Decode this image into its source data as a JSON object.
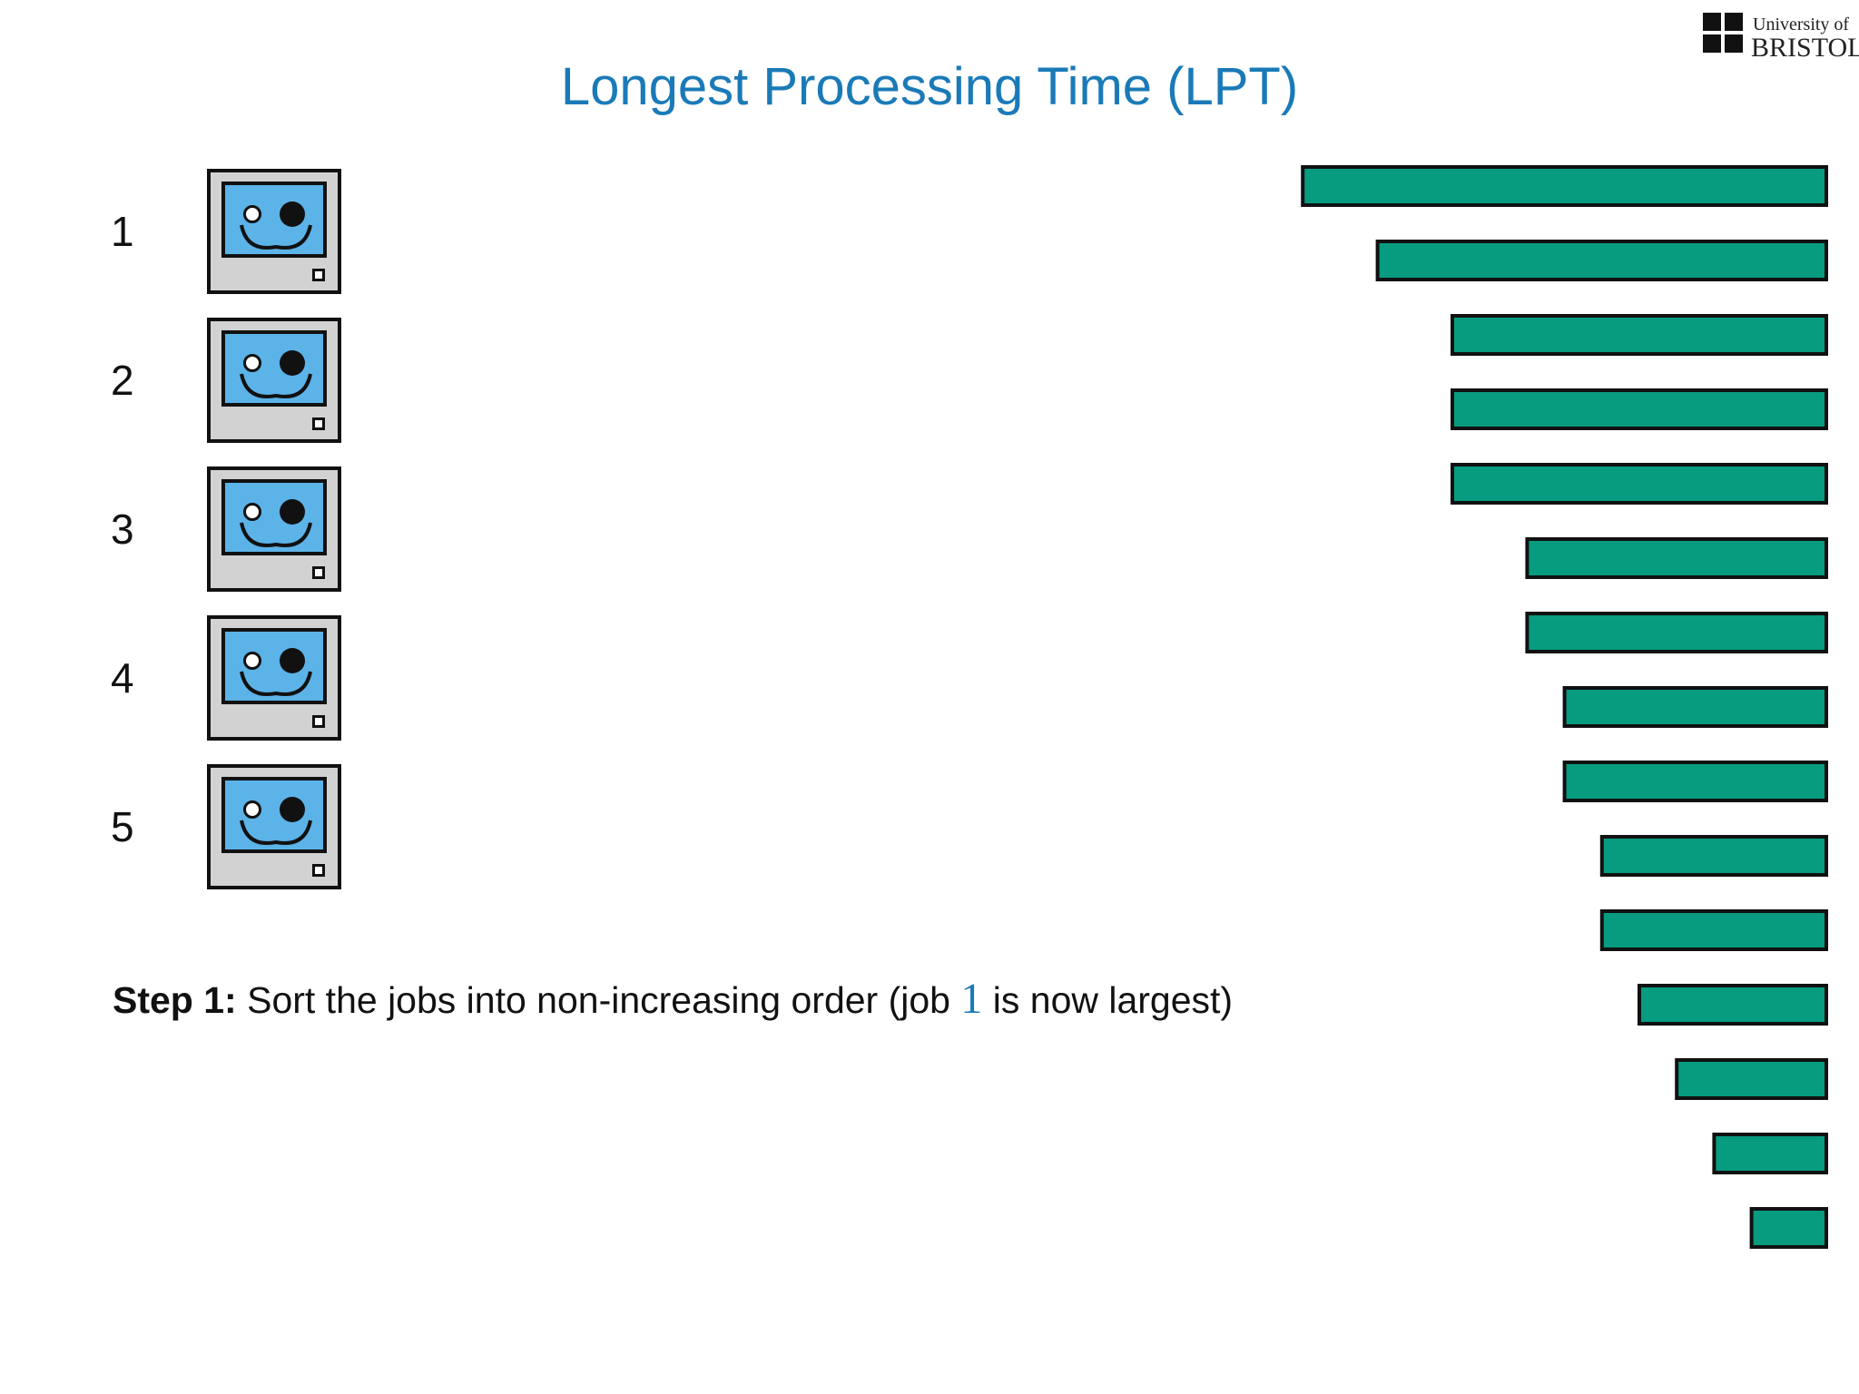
{
  "title": "Longest Processing Time (LPT)",
  "logo": {
    "line1": "University of",
    "line2": "BRISTOL"
  },
  "machines": [
    {
      "label": "1"
    },
    {
      "label": "2"
    },
    {
      "label": "3"
    },
    {
      "label": "4"
    },
    {
      "label": "5"
    }
  ],
  "step": {
    "bold": "Step 1:",
    "text_before": " Sort the jobs into non-increasing order (job ",
    "job": "1",
    "text_after": " is now largest)"
  },
  "colors": {
    "title": "#1a7ab8",
    "job_fill": "#079b80",
    "screen": "#5cb3e8",
    "case": "#d2d2d2"
  },
  "chart_data": {
    "type": "bar",
    "orientation": "horizontal",
    "alignment": "right",
    "description_units": "relative job processing time",
    "values": [
      14,
      12,
      10,
      10,
      10,
      8,
      8,
      7,
      7,
      6,
      6,
      5,
      4,
      3,
      2
    ]
  }
}
